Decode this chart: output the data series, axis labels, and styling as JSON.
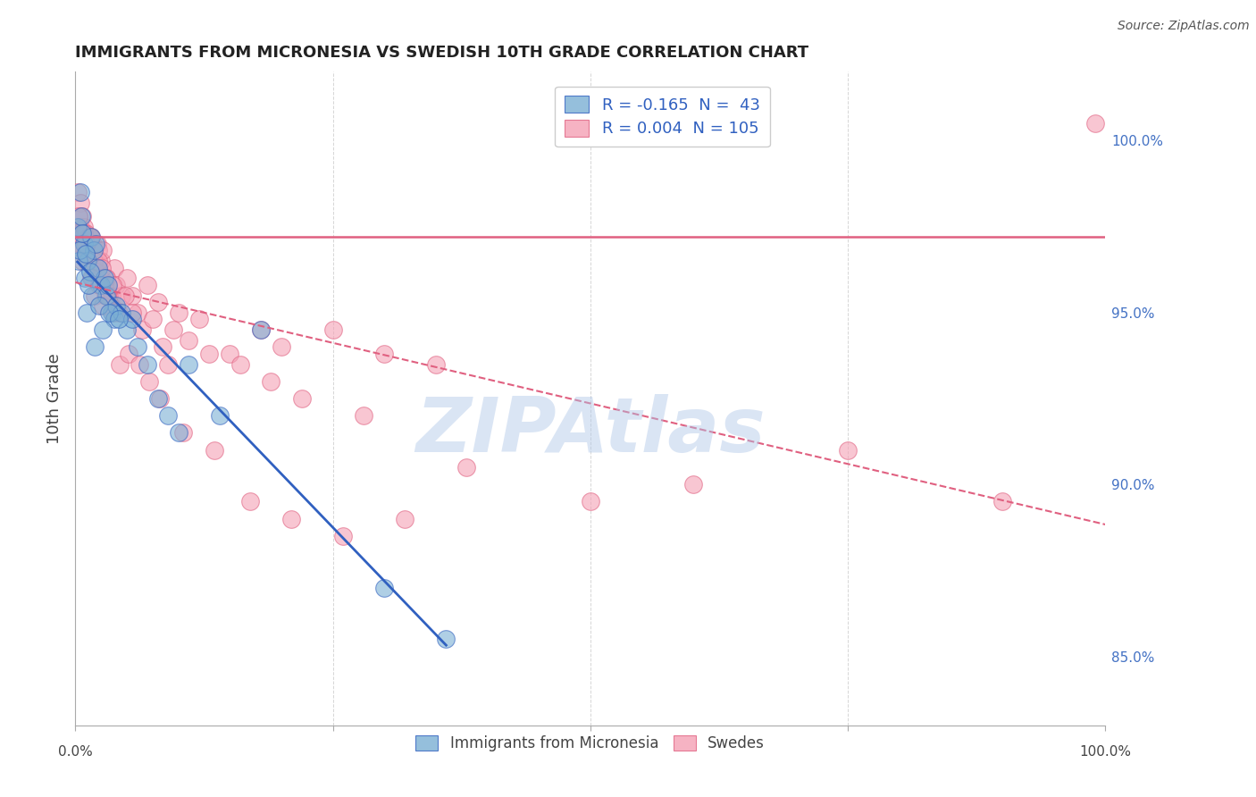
{
  "title": "IMMIGRANTS FROM MICRONESIA VS SWEDISH 10TH GRADE CORRELATION CHART",
  "source": "Source: ZipAtlas.com",
  "ylabel": "10th Grade",
  "right_yticks": [
    85.0,
    90.0,
    95.0,
    100.0
  ],
  "legend1_label": "Immigrants from Micronesia",
  "legend2_label": "Swedes",
  "r1": -0.165,
  "n1": 43,
  "r2": 0.004,
  "n2": 105,
  "blue_color": "#7bafd4",
  "pink_color": "#f4a0b5",
  "trend_blue": "#3060c0",
  "trend_pink": "#e06080",
  "watermark": "ZIPAtlas",
  "blue_dots_x": [
    0.2,
    0.5,
    0.8,
    1.2,
    1.5,
    1.8,
    2.0,
    2.2,
    2.5,
    2.8,
    3.0,
    3.2,
    3.5,
    3.8,
    4.0,
    4.5,
    5.0,
    5.5,
    6.0,
    7.0,
    8.0,
    9.0,
    10.0,
    11.0,
    14.0,
    18.0,
    0.3,
    0.6,
    0.9,
    1.1,
    1.4,
    1.6,
    1.9,
    2.3,
    2.7,
    3.3,
    4.2,
    0.4,
    0.7,
    1.0,
    1.3,
    30.0,
    36.0
  ],
  "blue_dots_y": [
    97.5,
    98.5,
    97.0,
    96.5,
    97.2,
    96.8,
    97.0,
    96.3,
    95.8,
    96.0,
    95.5,
    95.8,
    95.0,
    94.8,
    95.2,
    95.0,
    94.5,
    94.8,
    94.0,
    93.5,
    92.5,
    92.0,
    91.5,
    93.5,
    92.0,
    94.5,
    96.5,
    97.8,
    96.0,
    95.0,
    96.2,
    95.5,
    94.0,
    95.2,
    94.5,
    95.0,
    94.8,
    96.8,
    97.3,
    96.7,
    95.8,
    87.0,
    85.5
  ],
  "pink_dots_x": [
    0.2,
    0.3,
    0.5,
    0.5,
    0.6,
    0.6,
    0.7,
    0.7,
    0.8,
    0.9,
    1.0,
    1.0,
    1.1,
    1.2,
    1.3,
    1.3,
    1.4,
    1.5,
    1.5,
    1.6,
    1.7,
    1.8,
    1.9,
    2.0,
    2.1,
    2.2,
    2.3,
    2.5,
    2.7,
    2.9,
    3.0,
    3.2,
    3.5,
    3.8,
    4.0,
    4.5,
    5.0,
    5.5,
    6.0,
    7.0,
    8.0,
    9.0,
    10.0,
    12.0,
    15.0,
    18.0,
    20.0,
    25.0,
    30.0,
    35.0,
    0.4,
    0.6,
    0.8,
    1.0,
    1.2,
    1.4,
    1.6,
    1.8,
    2.0,
    2.2,
    2.4,
    2.6,
    2.8,
    3.0,
    3.3,
    3.6,
    4.2,
    4.8,
    5.5,
    6.5,
    7.5,
    8.5,
    9.5,
    11.0,
    13.0,
    16.0,
    19.0,
    22.0,
    28.0,
    0.3,
    0.7,
    1.1,
    1.5,
    1.9,
    2.3,
    2.7,
    3.1,
    3.7,
    4.3,
    5.2,
    6.2,
    7.2,
    8.2,
    10.5,
    13.5,
    17.0,
    21.0,
    26.0,
    32.0,
    38.0,
    50.0,
    60.0,
    75.0,
    90.0,
    99.0
  ],
  "pink_dots_y": [
    98.5,
    97.8,
    98.2,
    97.5,
    97.3,
    97.0,
    97.8,
    97.2,
    97.5,
    97.0,
    97.3,
    96.8,
    97.0,
    96.5,
    97.2,
    96.7,
    97.0,
    96.8,
    97.2,
    96.5,
    97.0,
    96.8,
    96.3,
    96.5,
    97.0,
    96.8,
    96.0,
    96.5,
    96.8,
    95.5,
    96.0,
    95.8,
    95.5,
    96.3,
    95.8,
    95.5,
    96.0,
    95.5,
    95.0,
    95.8,
    95.3,
    93.5,
    95.0,
    94.8,
    93.8,
    94.5,
    94.0,
    94.5,
    93.8,
    93.5,
    97.0,
    96.8,
    97.3,
    97.0,
    96.5,
    97.2,
    96.0,
    96.5,
    96.2,
    96.5,
    96.0,
    96.3,
    95.8,
    96.0,
    95.5,
    95.8,
    95.0,
    95.5,
    95.0,
    94.5,
    94.8,
    94.0,
    94.5,
    94.2,
    93.8,
    93.5,
    93.0,
    92.5,
    92.0,
    97.8,
    96.5,
    96.5,
    96.0,
    95.5,
    95.8,
    95.2,
    95.5,
    95.0,
    93.5,
    93.8,
    93.5,
    93.0,
    92.5,
    91.5,
    91.0,
    89.5,
    89.0,
    88.5,
    89.0,
    90.5,
    89.5,
    90.0,
    91.0,
    89.5,
    100.5
  ],
  "hline_y": 97.2,
  "xlim": [
    0,
    100
  ],
  "ylim": [
    83.0,
    102.0
  ]
}
